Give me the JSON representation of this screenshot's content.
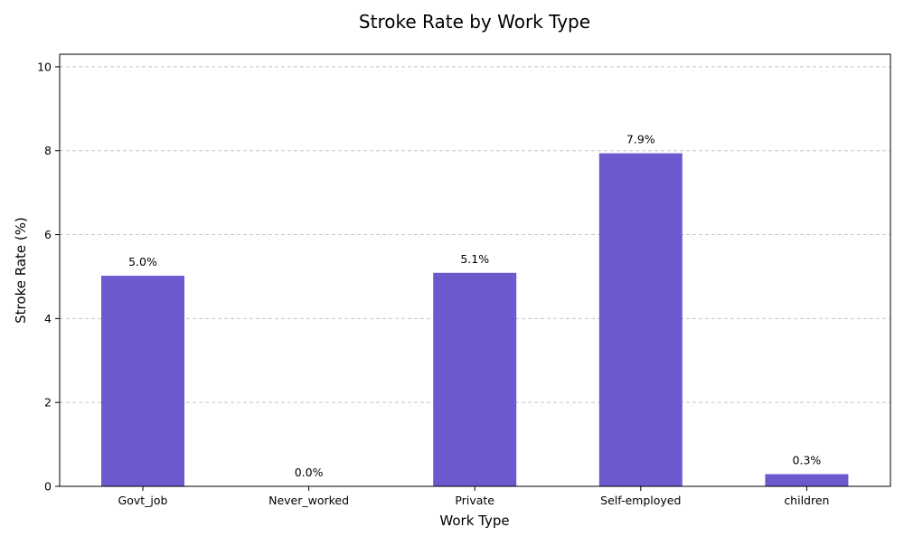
{
  "chart_data": {
    "type": "bar",
    "title": "Stroke Rate by Work Type",
    "xlabel": "Work Type",
    "ylabel": "Stroke Rate (%)",
    "categories": [
      "Govt_job",
      "Never_worked",
      "Private",
      "Self-employed",
      "children"
    ],
    "values": [
      5.02,
      0.0,
      5.09,
      7.94,
      0.29
    ],
    "value_labels": [
      "5.0%",
      "0.0%",
      "5.1%",
      "7.9%",
      "0.3%"
    ],
    "ylim": [
      0,
      10.3
    ],
    "yticks": [
      0,
      2,
      4,
      6,
      8,
      10
    ],
    "grid": "y-dashed",
    "bar_color": "#6a5acd",
    "grid_color": "#c8c8c8"
  }
}
